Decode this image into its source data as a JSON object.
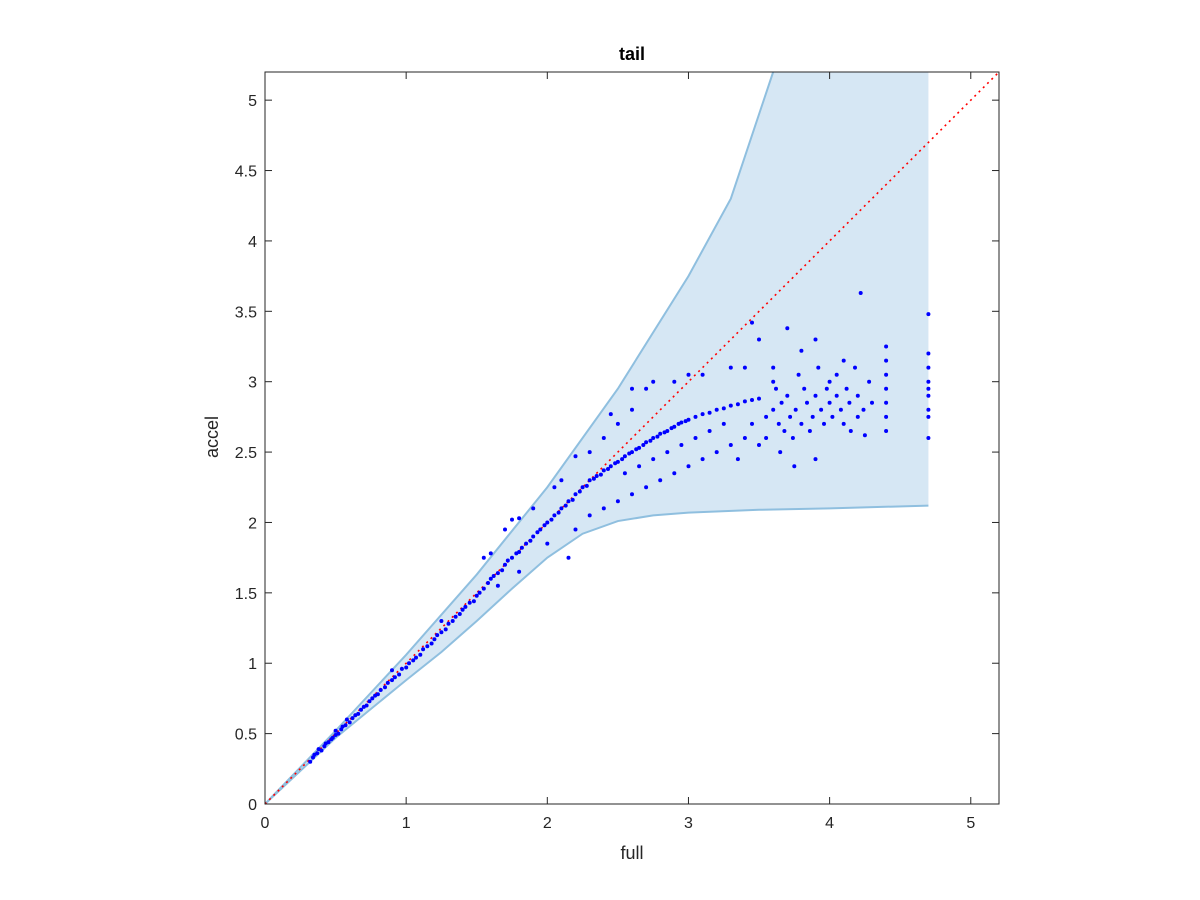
{
  "chart_data": {
    "type": "scatter",
    "title": "tail",
    "xlabel": "full",
    "ylabel": "accel",
    "xlim": [
      0,
      5.2
    ],
    "ylim": [
      0,
      5.2
    ],
    "xticks": [
      "0",
      "1",
      "2",
      "3",
      "4",
      "5"
    ],
    "yticks": [
      "0",
      "0.5",
      "1",
      "1.5",
      "2",
      "2.5",
      "3",
      "3.5",
      "4",
      "4.5",
      "5"
    ],
    "grid": false,
    "legend": "none",
    "colors": {
      "points": "#0000ff",
      "band_fill": "#d6e7f4",
      "band_edge": "#8fbfdf",
      "reference_line": "#ff0000",
      "axes": "#262626"
    },
    "reference_line": {
      "style": "dotted",
      "x": [
        0,
        5.2
      ],
      "y": [
        0,
        5.2
      ]
    },
    "band": {
      "upper": [
        [
          0,
          0
        ],
        [
          0.5,
          0.52
        ],
        [
          1,
          1.06
        ],
        [
          1.5,
          1.63
        ],
        [
          2,
          2.25
        ],
        [
          2.5,
          2.95
        ],
        [
          3,
          3.75
        ],
        [
          3.3,
          4.3
        ],
        [
          3.6,
          5.2
        ],
        [
          4.7,
          5.2
        ]
      ],
      "lower": [
        [
          0,
          0
        ],
        [
          0.5,
          0.47
        ],
        [
          1,
          0.88
        ],
        [
          1.25,
          1.08
        ],
        [
          1.5,
          1.3
        ],
        [
          1.75,
          1.53
        ],
        [
          2,
          1.75
        ],
        [
          2.25,
          1.92
        ],
        [
          2.5,
          2.01
        ],
        [
          2.75,
          2.05
        ],
        [
          3,
          2.07
        ],
        [
          3.5,
          2.09
        ],
        [
          4,
          2.1
        ],
        [
          4.7,
          2.12
        ]
      ]
    },
    "points": [
      [
        0.32,
        0.3
      ],
      [
        0.34,
        0.33
      ],
      [
        0.35,
        0.35
      ],
      [
        0.37,
        0.36
      ],
      [
        0.38,
        0.39
      ],
      [
        0.4,
        0.38
      ],
      [
        0.42,
        0.41
      ],
      [
        0.43,
        0.43
      ],
      [
        0.45,
        0.44
      ],
      [
        0.47,
        0.46
      ],
      [
        0.48,
        0.47
      ],
      [
        0.5,
        0.49
      ],
      [
        0.52,
        0.5
      ],
      [
        0.54,
        0.53
      ],
      [
        0.55,
        0.55
      ],
      [
        0.57,
        0.56
      ],
      [
        0.58,
        0.6
      ],
      [
        0.6,
        0.58
      ],
      [
        0.62,
        0.61
      ],
      [
        0.64,
        0.63
      ],
      [
        0.66,
        0.64
      ],
      [
        0.68,
        0.67
      ],
      [
        0.7,
        0.69
      ],
      [
        0.72,
        0.7
      ],
      [
        0.74,
        0.73
      ],
      [
        0.76,
        0.75
      ],
      [
        0.78,
        0.77
      ],
      [
        0.8,
        0.78
      ],
      [
        0.82,
        0.81
      ],
      [
        0.85,
        0.83
      ],
      [
        0.87,
        0.86
      ],
      [
        0.9,
        0.88
      ],
      [
        0.92,
        0.9
      ],
      [
        0.95,
        0.92
      ],
      [
        0.97,
        0.96
      ],
      [
        1.0,
        0.97
      ],
      [
        1.02,
        1.0
      ],
      [
        1.05,
        1.02
      ],
      [
        1.07,
        1.04
      ],
      [
        1.1,
        1.06
      ],
      [
        1.12,
        1.1
      ],
      [
        1.15,
        1.12
      ],
      [
        1.18,
        1.14
      ],
      [
        1.2,
        1.17
      ],
      [
        1.22,
        1.2
      ],
      [
        1.25,
        1.22
      ],
      [
        1.28,
        1.24
      ],
      [
        1.3,
        1.28
      ],
      [
        1.33,
        1.3
      ],
      [
        1.35,
        1.33
      ],
      [
        1.38,
        1.35
      ],
      [
        1.4,
        1.38
      ],
      [
        1.42,
        1.4
      ],
      [
        1.45,
        1.43
      ],
      [
        1.48,
        1.44
      ],
      [
        1.5,
        1.48
      ],
      [
        1.52,
        1.5
      ],
      [
        1.55,
        1.53
      ],
      [
        1.58,
        1.57
      ],
      [
        1.6,
        1.6
      ],
      [
        1.62,
        1.62
      ],
      [
        1.65,
        1.64
      ],
      [
        1.68,
        1.66
      ],
      [
        1.7,
        1.7
      ],
      [
        1.72,
        1.73
      ],
      [
        1.75,
        1.75
      ],
      [
        1.78,
        1.78
      ],
      [
        1.8,
        1.79
      ],
      [
        1.82,
        1.82
      ],
      [
        1.85,
        1.85
      ],
      [
        1.88,
        1.87
      ],
      [
        1.9,
        1.9
      ],
      [
        1.93,
        1.93
      ],
      [
        1.95,
        1.95
      ],
      [
        1.98,
        1.98
      ],
      [
        2.0,
        2.0
      ],
      [
        2.03,
        2.02
      ],
      [
        2.05,
        2.05
      ],
      [
        2.08,
        2.07
      ],
      [
        2.1,
        2.1
      ],
      [
        2.13,
        2.12
      ],
      [
        2.15,
        2.15
      ],
      [
        2.18,
        2.16
      ],
      [
        2.2,
        2.2
      ],
      [
        2.23,
        2.22
      ],
      [
        2.25,
        2.25
      ],
      [
        2.28,
        2.26
      ],
      [
        2.3,
        2.3
      ],
      [
        2.33,
        2.31
      ],
      [
        2.35,
        2.33
      ],
      [
        2.38,
        2.34
      ],
      [
        2.4,
        2.37
      ],
      [
        2.43,
        2.38
      ],
      [
        2.45,
        2.4
      ],
      [
        2.48,
        2.42
      ],
      [
        2.5,
        2.43
      ],
      [
        2.53,
        2.45
      ],
      [
        2.55,
        2.47
      ],
      [
        2.58,
        2.49
      ],
      [
        2.6,
        2.5
      ],
      [
        2.63,
        2.52
      ],
      [
        2.65,
        2.53
      ],
      [
        2.68,
        2.55
      ],
      [
        2.7,
        2.57
      ],
      [
        2.73,
        2.58
      ],
      [
        2.75,
        2.6
      ],
      [
        2.78,
        2.61
      ],
      [
        2.8,
        2.63
      ],
      [
        2.83,
        2.64
      ],
      [
        2.85,
        2.65
      ],
      [
        2.88,
        2.67
      ],
      [
        2.9,
        2.68
      ],
      [
        2.93,
        2.7
      ],
      [
        2.95,
        2.71
      ],
      [
        2.98,
        2.72
      ],
      [
        3.0,
        2.73
      ],
      [
        3.05,
        2.75
      ],
      [
        3.1,
        2.77
      ],
      [
        3.15,
        2.78
      ],
      [
        3.2,
        2.8
      ],
      [
        3.25,
        2.81
      ],
      [
        3.3,
        2.83
      ],
      [
        3.35,
        2.84
      ],
      [
        3.4,
        2.86
      ],
      [
        3.45,
        2.87
      ],
      [
        3.5,
        2.88
      ],
      [
        0.5,
        0.52
      ],
      [
        0.9,
        0.95
      ],
      [
        1.25,
        1.3
      ],
      [
        1.55,
        1.75
      ],
      [
        1.6,
        1.78
      ],
      [
        1.7,
        1.95
      ],
      [
        1.75,
        2.02
      ],
      [
        1.8,
        2.03
      ],
      [
        1.9,
        2.1
      ],
      [
        2.05,
        2.25
      ],
      [
        2.1,
        2.3
      ],
      [
        2.2,
        2.47
      ],
      [
        2.3,
        2.5
      ],
      [
        2.4,
        2.6
      ],
      [
        2.5,
        2.7
      ],
      [
        2.6,
        2.8
      ],
      [
        2.7,
        2.95
      ],
      [
        2.75,
        3.0
      ],
      [
        2.9,
        3.0
      ],
      [
        3.0,
        3.05
      ],
      [
        3.1,
        3.05
      ],
      [
        3.3,
        3.1
      ],
      [
        3.4,
        3.1
      ],
      [
        3.45,
        3.42
      ],
      [
        3.5,
        3.3
      ],
      [
        3.6,
        3.1
      ],
      [
        3.7,
        3.38
      ],
      [
        3.6,
        3.0
      ],
      [
        3.8,
        3.22
      ],
      [
        3.9,
        3.3
      ],
      [
        2.45,
        2.77
      ],
      [
        2.6,
        2.95
      ],
      [
        1.65,
        1.55
      ],
      [
        1.8,
        1.65
      ],
      [
        2.0,
        1.85
      ],
      [
        2.15,
        1.75
      ],
      [
        2.2,
        1.95
      ],
      [
        2.3,
        2.05
      ],
      [
        2.4,
        2.1
      ],
      [
        2.5,
        2.15
      ],
      [
        2.6,
        2.2
      ],
      [
        2.7,
        2.25
      ],
      [
        2.8,
        2.3
      ],
      [
        2.9,
        2.35
      ],
      [
        3.0,
        2.4
      ],
      [
        3.1,
        2.45
      ],
      [
        3.2,
        2.5
      ],
      [
        3.3,
        2.55
      ],
      [
        3.35,
        2.45
      ],
      [
        3.4,
        2.6
      ],
      [
        3.5,
        2.55
      ],
      [
        3.55,
        2.6
      ],
      [
        3.65,
        2.5
      ],
      [
        3.75,
        2.4
      ],
      [
        3.9,
        2.45
      ],
      [
        2.55,
        2.35
      ],
      [
        2.65,
        2.4
      ],
      [
        2.75,
        2.45
      ],
      [
        2.85,
        2.5
      ],
      [
        2.95,
        2.55
      ],
      [
        3.05,
        2.6
      ],
      [
        3.15,
        2.65
      ],
      [
        3.25,
        2.7
      ],
      [
        3.45,
        2.7
      ],
      [
        3.55,
        2.75
      ],
      [
        3.6,
        2.8
      ],
      [
        3.62,
        2.95
      ],
      [
        3.64,
        2.7
      ],
      [
        3.66,
        2.85
      ],
      [
        3.68,
        2.65
      ],
      [
        3.7,
        2.9
      ],
      [
        3.72,
        2.75
      ],
      [
        3.74,
        2.6
      ],
      [
        3.76,
        2.8
      ],
      [
        3.78,
        3.05
      ],
      [
        3.8,
        2.7
      ],
      [
        3.82,
        2.95
      ],
      [
        3.84,
        2.85
      ],
      [
        3.86,
        2.65
      ],
      [
        3.88,
        2.75
      ],
      [
        3.9,
        2.9
      ],
      [
        3.92,
        3.1
      ],
      [
        3.94,
        2.8
      ],
      [
        3.96,
        2.7
      ],
      [
        3.98,
        2.95
      ],
      [
        4.0,
        2.85
      ],
      [
        4.0,
        3.0
      ],
      [
        4.02,
        2.75
      ],
      [
        4.05,
        2.9
      ],
      [
        4.05,
        3.05
      ],
      [
        4.08,
        2.8
      ],
      [
        4.1,
        2.7
      ],
      [
        4.1,
        3.15
      ],
      [
        4.12,
        2.95
      ],
      [
        4.14,
        2.85
      ],
      [
        4.15,
        2.65
      ],
      [
        4.18,
        3.1
      ],
      [
        4.2,
        2.9
      ],
      [
        4.2,
        2.75
      ],
      [
        4.22,
        3.63
      ],
      [
        4.24,
        2.8
      ],
      [
        4.25,
        2.62
      ],
      [
        4.28,
        3.0
      ],
      [
        4.3,
        2.85
      ],
      [
        4.4,
        2.75
      ],
      [
        4.4,
        2.85
      ],
      [
        4.4,
        2.95
      ],
      [
        4.4,
        3.05
      ],
      [
        4.4,
        3.15
      ],
      [
        4.4,
        3.25
      ],
      [
        4.4,
        2.65
      ],
      [
        4.7,
        2.8
      ],
      [
        4.7,
        2.9
      ],
      [
        4.7,
        3.0
      ],
      [
        4.7,
        3.1
      ],
      [
        4.7,
        3.2
      ],
      [
        4.7,
        2.75
      ],
      [
        4.7,
        3.48
      ],
      [
        4.7,
        2.6
      ],
      [
        4.7,
        2.95
      ]
    ]
  }
}
